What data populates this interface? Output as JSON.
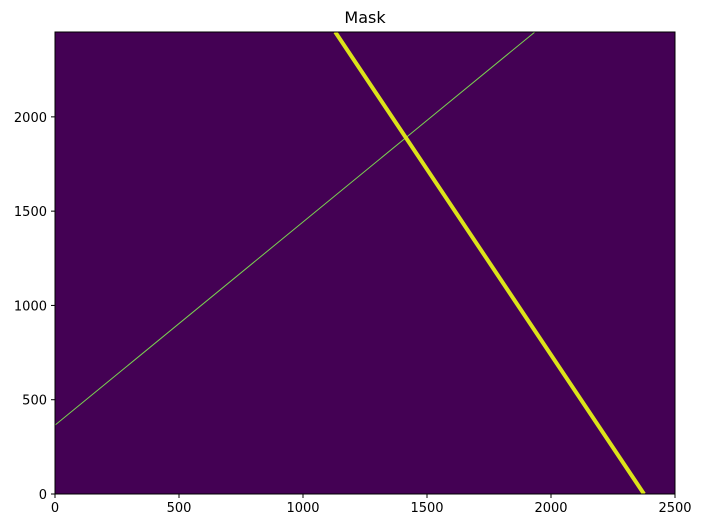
{
  "chart_data": {
    "type": "heatmap",
    "title": "Mask",
    "xlabel": "",
    "ylabel": "",
    "xlim": [
      0,
      2500
    ],
    "ylim": [
      0,
      2450
    ],
    "x_ticks": [
      0,
      500,
      1000,
      1500,
      2000,
      2500
    ],
    "y_ticks": [
      0,
      500,
      1000,
      1500,
      2000
    ],
    "grid": false,
    "legend": "none",
    "colormap": "viridis",
    "background_value": 0,
    "background_color": "#440154",
    "lines": [
      {
        "label": "",
        "x": [
          0,
          1935
        ],
        "y": [
          365,
          2450
        ],
        "color": "#7ad151",
        "width": 1
      },
      {
        "label": "",
        "x": [
          1130,
          2375
        ],
        "y": [
          2450,
          0
        ],
        "color": "#dce319",
        "width": 4
      }
    ]
  }
}
